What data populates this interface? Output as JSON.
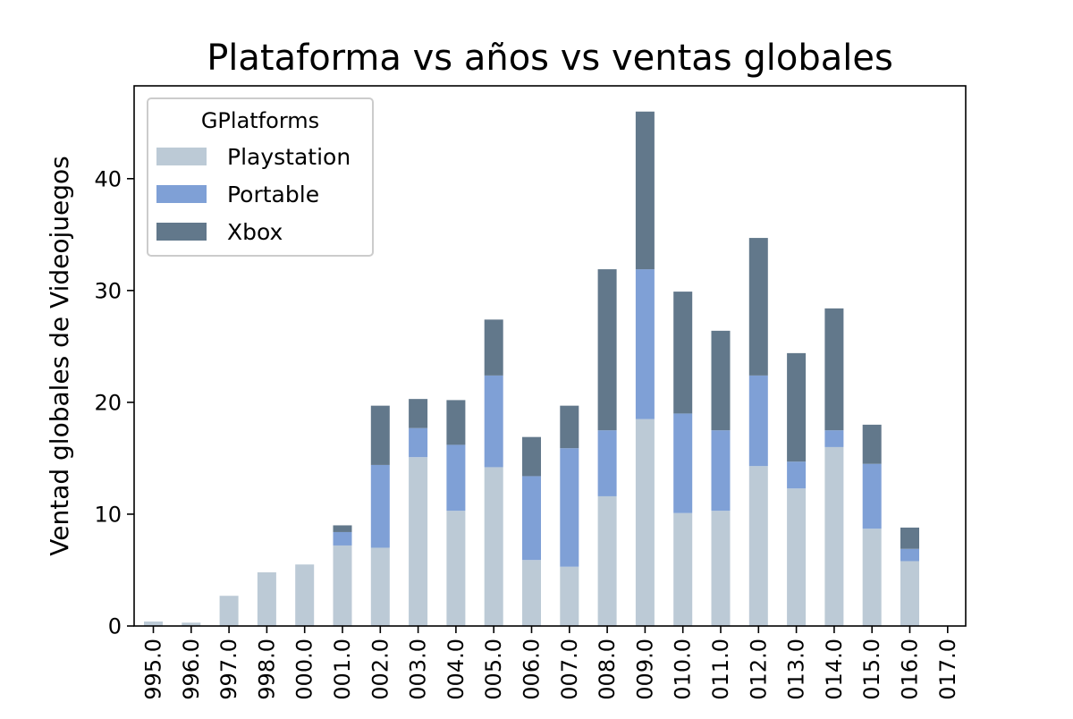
{
  "chart_data": {
    "type": "bar",
    "stacked": true,
    "title": "Plataforma vs años vs ventas globales",
    "xlabel": "",
    "ylabel": "Ventad globales de Videojuegos",
    "categories": [
      "1995.0",
      "1996.0",
      "1997.0",
      "1998.0",
      "2000.0",
      "2001.0",
      "2002.0",
      "2003.0",
      "2004.0",
      "2005.0",
      "2006.0",
      "2007.0",
      "2008.0",
      "2009.0",
      "2010.0",
      "2011.0",
      "2012.0",
      "2013.0",
      "2014.0",
      "2015.0",
      "2016.0",
      "2017.0"
    ],
    "category_labels_shown": [
      "995.0",
      "996.0",
      "997.0",
      "998.0",
      "000.0",
      "001.0",
      "002.0",
      "003.0",
      "004.0",
      "005.0",
      "006.0",
      "007.0",
      "008.0",
      "009.0",
      "010.0",
      "011.0",
      "012.0",
      "013.0",
      "014.0",
      "015.0",
      "016.0",
      "017.0"
    ],
    "series": [
      {
        "name": "Playstation",
        "color": "#bccad6",
        "values": [
          0.4,
          0.3,
          2.7,
          4.8,
          5.5,
          7.2,
          7.0,
          15.1,
          10.3,
          14.2,
          5.9,
          5.3,
          11.6,
          18.5,
          10.1,
          10.3,
          14.3,
          12.3,
          16.0,
          8.7,
          5.8,
          0.0
        ]
      },
      {
        "name": "Portable",
        "color": "#7fa0d6",
        "values": [
          0.0,
          0.0,
          0.0,
          0.0,
          0.0,
          1.2,
          7.4,
          2.6,
          5.9,
          8.2,
          7.5,
          10.6,
          5.9,
          13.4,
          8.9,
          7.2,
          8.1,
          2.4,
          1.5,
          5.8,
          1.1,
          0.0
        ]
      },
      {
        "name": "Xbox",
        "color": "#62788b",
        "values": [
          0.0,
          0.0,
          0.0,
          0.0,
          0.0,
          0.6,
          5.3,
          2.6,
          4.0,
          5.0,
          3.5,
          3.8,
          14.4,
          14.1,
          10.9,
          8.9,
          12.3,
          9.7,
          10.9,
          3.5,
          1.9,
          0.0
        ]
      }
    ],
    "ylim": [
      0,
      48.3
    ],
    "yticks": [
      0,
      10,
      20,
      30,
      40
    ],
    "legend": {
      "title": "GPlatforms",
      "position": "upper-left"
    },
    "grid": false
  }
}
